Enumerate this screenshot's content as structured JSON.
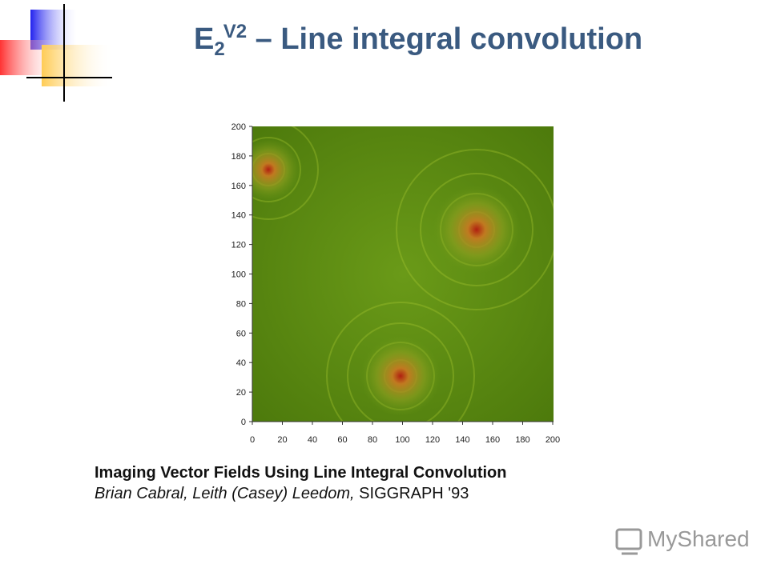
{
  "header": {
    "title_main": "E",
    "title_sub": "2",
    "title_sup": "V2",
    "title_rest": "– Line integral convolution"
  },
  "figure": {
    "y_ticks": [
      0,
      20,
      40,
      60,
      80,
      100,
      120,
      140,
      160,
      180,
      200
    ],
    "x_ticks": [
      0,
      20,
      40,
      60,
      80,
      100,
      120,
      140,
      160,
      180,
      200
    ]
  },
  "caption": {
    "title": "Imaging Vector Fields Using Line Integral Convolution",
    "authors": "Brian Cabral, Leith (Casey) Leedom,",
    "venue": "SIGGRAPH '93"
  },
  "watermark": "MyShared"
}
